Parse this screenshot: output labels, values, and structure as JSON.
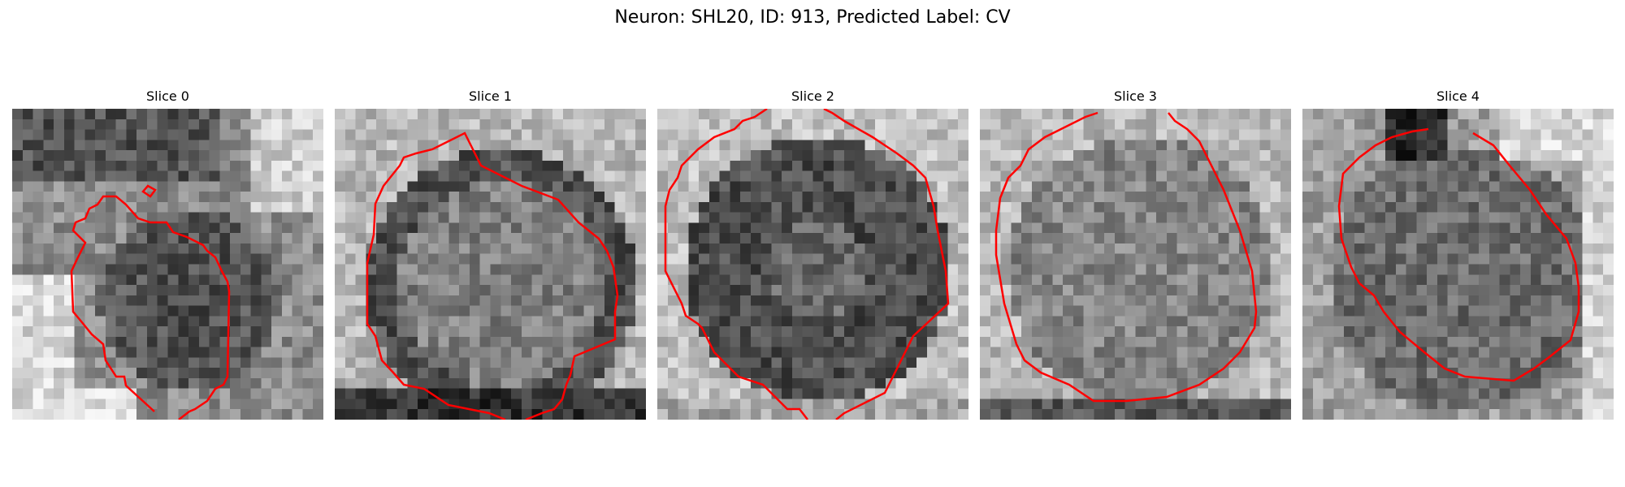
{
  "figure": {
    "title": "Neuron: SHL20, ID: 913, Predicted Label: CV",
    "contour_color": "#ff0000",
    "colormap": "gray"
  },
  "panels": [
    {
      "title": "Slice 0",
      "tone": "dark-soma-left-bright"
    },
    {
      "title": "Slice 1",
      "tone": "dark-ring"
    },
    {
      "title": "Slice 2",
      "tone": "dark-full"
    },
    {
      "title": "Slice 3",
      "tone": "mid-textured"
    },
    {
      "title": "Slice 4",
      "tone": "mid-right-bright"
    }
  ]
}
